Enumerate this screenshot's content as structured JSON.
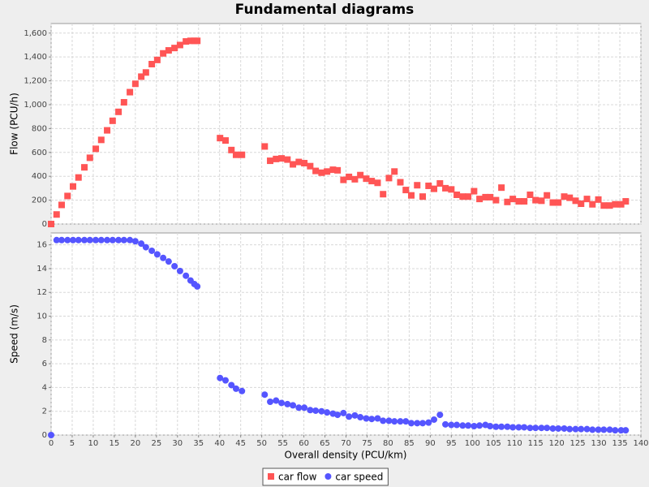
{
  "chart_data": [
    {
      "type": "scatter",
      "title": "Fundamental diagrams",
      "ylabel": "Flow (PCU/h)",
      "x": [
        0,
        1.3,
        2.5,
        3.9,
        5.2,
        6.5,
        7.9,
        9.2,
        10.6,
        11.9,
        13.3,
        14.6,
        16,
        17.3,
        18.7,
        20,
        21.4,
        22.5,
        23.9,
        25.2,
        26.6,
        27.9,
        29.3,
        30.6,
        32,
        33.1,
        34,
        34.7,
        40.1,
        41.4,
        42.8,
        43.9,
        45.3,
        50.7,
        52,
        53.4,
        54.7,
        56.1,
        57.4,
        58.8,
        60.1,
        61.5,
        62.8,
        64.2,
        65.5,
        66.9,
        68,
        69.4,
        70.7,
        72.1,
        73.4,
        74.8,
        76.1,
        77.5,
        78.8,
        80.2,
        81.5,
        82.9,
        84.2,
        85.5,
        86.9,
        88.2,
        89.6,
        90.9,
        92.3,
        93.6,
        95,
        96.3,
        97.7,
        99,
        100.4,
        101.7,
        103.1,
        104.2,
        105.6,
        106.9,
        108.3,
        109.6,
        111,
        112.3,
        113.7,
        115,
        116.4,
        117.7,
        119.1,
        120.4,
        121.8,
        123.1,
        124.5,
        125.8,
        127.2,
        128.5,
        129.9,
        131.2,
        132.6,
        133.9,
        135.3,
        136.4
      ],
      "series": [
        {
          "name": "car flow",
          "color": "#ff5555",
          "marker": "square",
          "values": [
            0,
            80,
            160,
            235,
            315,
            390,
            475,
            555,
            630,
            705,
            785,
            865,
            940,
            1020,
            1105,
            1175,
            1235,
            1270,
            1340,
            1375,
            1430,
            1455,
            1475,
            1500,
            1530,
            1535,
            1535,
            1535,
            720,
            700,
            620,
            580,
            580,
            650,
            530,
            545,
            550,
            540,
            500,
            520,
            510,
            485,
            445,
            430,
            440,
            455,
            450,
            370,
            395,
            375,
            410,
            380,
            360,
            345,
            250,
            385,
            440,
            350,
            285,
            240,
            325,
            230,
            320,
            295,
            340,
            300,
            290,
            245,
            230,
            230,
            275,
            210,
            225,
            225,
            200,
            305,
            185,
            210,
            190,
            190,
            245,
            200,
            195,
            240,
            180,
            180,
            230,
            220,
            195,
            170,
            210,
            165,
            205,
            155,
            155,
            165,
            165,
            190
          ]
        }
      ],
      "ylim": [
        0,
        1680
      ],
      "yticks": [
        0,
        200,
        400,
        600,
        800,
        {
          "value": 1000,
          "label": "1,000"
        },
        {
          "value": 1200,
          "label": "1,200"
        },
        {
          "value": 1400,
          "label": "1,400"
        },
        {
          "value": 1600,
          "label": "1,600"
        }
      ],
      "grid": true
    },
    {
      "type": "scatter",
      "xlabel": "Overall density (PCU/km)",
      "ylabel": "Speed (m/s)",
      "x": [
        0,
        1.3,
        2.5,
        3.9,
        5.2,
        6.5,
        7.9,
        9.2,
        10.6,
        11.9,
        13.3,
        14.6,
        16,
        17.3,
        18.7,
        20,
        21.4,
        22.5,
        23.9,
        25.2,
        26.6,
        27.9,
        29.3,
        30.6,
        32,
        33.1,
        34,
        34.7,
        40.1,
        41.4,
        42.8,
        43.9,
        45.3,
        50.7,
        52,
        53.4,
        54.7,
        56.1,
        57.4,
        58.8,
        60.1,
        61.5,
        62.8,
        64.2,
        65.5,
        66.9,
        68,
        69.4,
        70.7,
        72.1,
        73.4,
        74.8,
        76.1,
        77.5,
        78.8,
        80.2,
        81.5,
        82.9,
        84.2,
        85.5,
        86.9,
        88.2,
        89.6,
        90.9,
        92.3,
        93.6,
        95,
        96.3,
        97.7,
        99,
        100.4,
        101.7,
        103.1,
        104.2,
        105.6,
        106.9,
        108.3,
        109.6,
        111,
        112.3,
        113.7,
        115,
        116.4,
        117.7,
        119.1,
        120.4,
        121.8,
        123.1,
        124.5,
        125.8,
        127.2,
        128.5,
        129.9,
        131.2,
        132.6,
        133.9,
        135.3,
        136.4
      ],
      "series": [
        {
          "name": "car speed",
          "color": "#5555ff",
          "marker": "circle",
          "values": [
            0,
            16.4,
            16.4,
            16.4,
            16.4,
            16.4,
            16.4,
            16.4,
            16.4,
            16.4,
            16.4,
            16.4,
            16.4,
            16.4,
            16.4,
            16.3,
            16.1,
            15.8,
            15.5,
            15.2,
            14.9,
            14.6,
            14.2,
            13.8,
            13.4,
            13.0,
            12.7,
            12.5,
            4.8,
            4.6,
            4.2,
            3.9,
            3.7,
            3.4,
            2.8,
            2.9,
            2.7,
            2.6,
            2.5,
            2.3,
            2.3,
            2.1,
            2.05,
            2.0,
            1.9,
            1.8,
            1.7,
            1.85,
            1.55,
            1.65,
            1.5,
            1.4,
            1.35,
            1.4,
            1.2,
            1.2,
            1.15,
            1.15,
            1.15,
            1.0,
            1.0,
            1.0,
            1.05,
            1.3,
            1.7,
            0.9,
            0.85,
            0.85,
            0.8,
            0.8,
            0.75,
            0.8,
            0.85,
            0.75,
            0.7,
            0.7,
            0.7,
            0.65,
            0.65,
            0.65,
            0.6,
            0.6,
            0.6,
            0.6,
            0.55,
            0.55,
            0.55,
            0.5,
            0.5,
            0.5,
            0.5,
            0.45,
            0.45,
            0.45,
            0.45,
            0.4,
            0.4,
            0.4
          ]
        }
      ],
      "xlim": [
        0,
        140
      ],
      "xticks": [
        0,
        5,
        10,
        15,
        20,
        25,
        30,
        35,
        40,
        45,
        50,
        55,
        60,
        65,
        70,
        75,
        80,
        85,
        90,
        95,
        100,
        105,
        110,
        115,
        120,
        125,
        130,
        135,
        140
      ],
      "ylim": [
        0,
        17
      ],
      "yticks": [
        0,
        2,
        4,
        6,
        8,
        10,
        12,
        14,
        16
      ],
      "grid": true
    }
  ]
}
